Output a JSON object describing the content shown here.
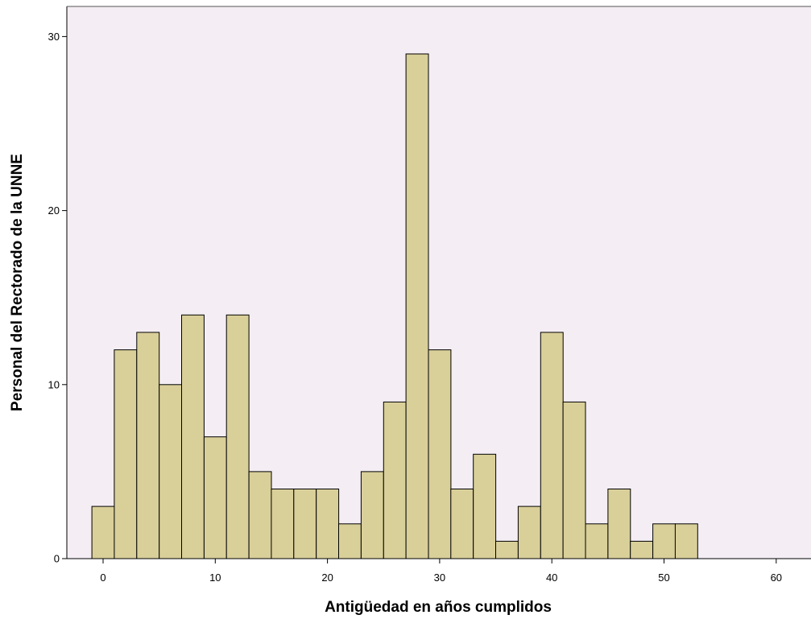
{
  "chart_data": {
    "type": "bar",
    "title": "",
    "xlabel": "Antigüedad en años cumplidos",
    "ylabel": "Personal del Rectorado de la UNNE",
    "xlim": [
      -2,
      63
    ],
    "ylim": [
      0,
      32
    ],
    "x_ticks": [
      0,
      10,
      20,
      30,
      40,
      50,
      60
    ],
    "y_ticks": [
      0,
      10,
      20,
      30
    ],
    "bin_width": 2,
    "bins": [
      {
        "x": 0,
        "value": 3
      },
      {
        "x": 2,
        "value": 12
      },
      {
        "x": 4,
        "value": 13
      },
      {
        "x": 6,
        "value": 10
      },
      {
        "x": 8,
        "value": 14
      },
      {
        "x": 10,
        "value": 7
      },
      {
        "x": 12,
        "value": 14
      },
      {
        "x": 14,
        "value": 5
      },
      {
        "x": 16,
        "value": 4
      },
      {
        "x": 18,
        "value": 4
      },
      {
        "x": 20,
        "value": 4
      },
      {
        "x": 22,
        "value": 2
      },
      {
        "x": 24,
        "value": 5
      },
      {
        "x": 26,
        "value": 9
      },
      {
        "x": 28,
        "value": 29
      },
      {
        "x": 30,
        "value": 12
      },
      {
        "x": 32,
        "value": 4
      },
      {
        "x": 34,
        "value": 6
      },
      {
        "x": 36,
        "value": 1
      },
      {
        "x": 38,
        "value": 3
      },
      {
        "x": 40,
        "value": 13
      },
      {
        "x": 42,
        "value": 9
      },
      {
        "x": 44,
        "value": 2
      },
      {
        "x": 46,
        "value": 4
      },
      {
        "x": 48,
        "value": 1
      },
      {
        "x": 50,
        "value": 2
      },
      {
        "x": 52,
        "value": 2
      }
    ],
    "grid": false,
    "colors": {
      "plot_background": "#f4eef4",
      "bar_fill": "#d9cf99",
      "bar_stroke": "#000000",
      "axis": "#000000"
    }
  }
}
